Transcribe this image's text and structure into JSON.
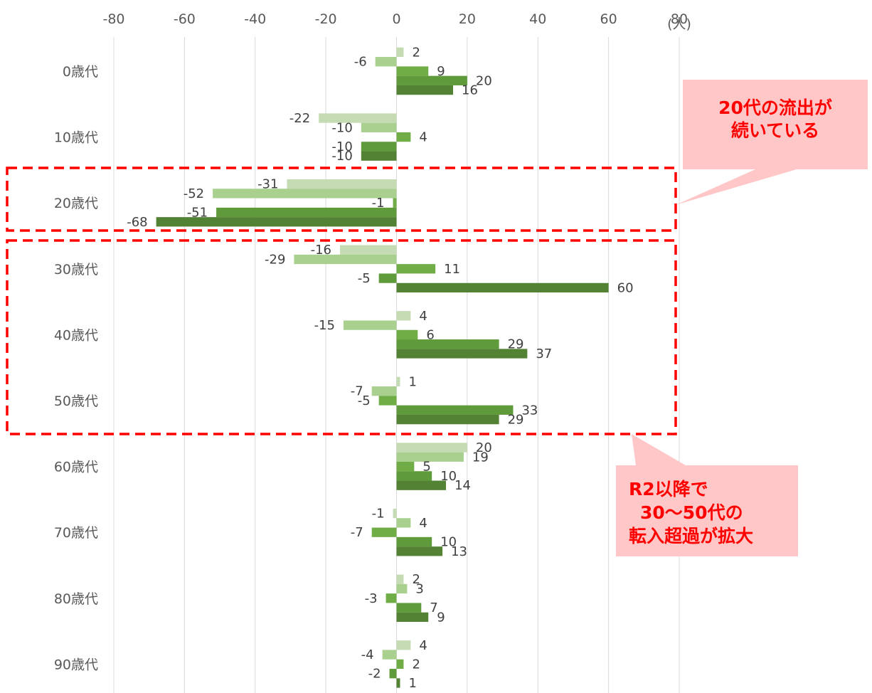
{
  "chart_data": {
    "type": "bar",
    "orientation": "horizontal",
    "unit_label": "(人)",
    "xlim": [
      -80,
      80
    ],
    "x_ticks": [
      "-80",
      "-60",
      "-40",
      "-20",
      "0",
      "20",
      "40",
      "60",
      "80"
    ],
    "grid": true,
    "categories": [
      "0歳代",
      "10歳代",
      "20歳代",
      "30歳代",
      "40歳代",
      "50歳代",
      "60歳代",
      "70歳代",
      "80歳代",
      "90歳代"
    ],
    "series": [
      {
        "values": [
          2,
          -22,
          -31,
          -16,
          4,
          1,
          20,
          -1,
          2,
          4
        ],
        "color": "#c5dbb4"
      },
      {
        "values": [
          -6,
          -10,
          -52,
          -29,
          -15,
          -7,
          19,
          4,
          3,
          -4
        ],
        "color": "#a9d08e"
      },
      {
        "values": [
          9,
          4,
          -1,
          11,
          6,
          -5,
          5,
          -7,
          -3,
          2
        ],
        "color": "#70ad47"
      },
      {
        "values": [
          20,
          -10,
          -51,
          -5,
          29,
          33,
          10,
          10,
          7,
          -2
        ],
        "color": "#5f9a3b"
      },
      {
        "values": [
          16,
          -10,
          -68,
          60,
          37,
          29,
          14,
          13,
          9,
          1
        ],
        "color": "#548235"
      }
    ],
    "annotations": [
      {
        "lines": [
          "20代の流出が",
          "続いている"
        ]
      },
      {
        "lines": [
          "R2以降で",
          "30～50代の",
          "転入超過が拡大"
        ]
      }
    ]
  }
}
